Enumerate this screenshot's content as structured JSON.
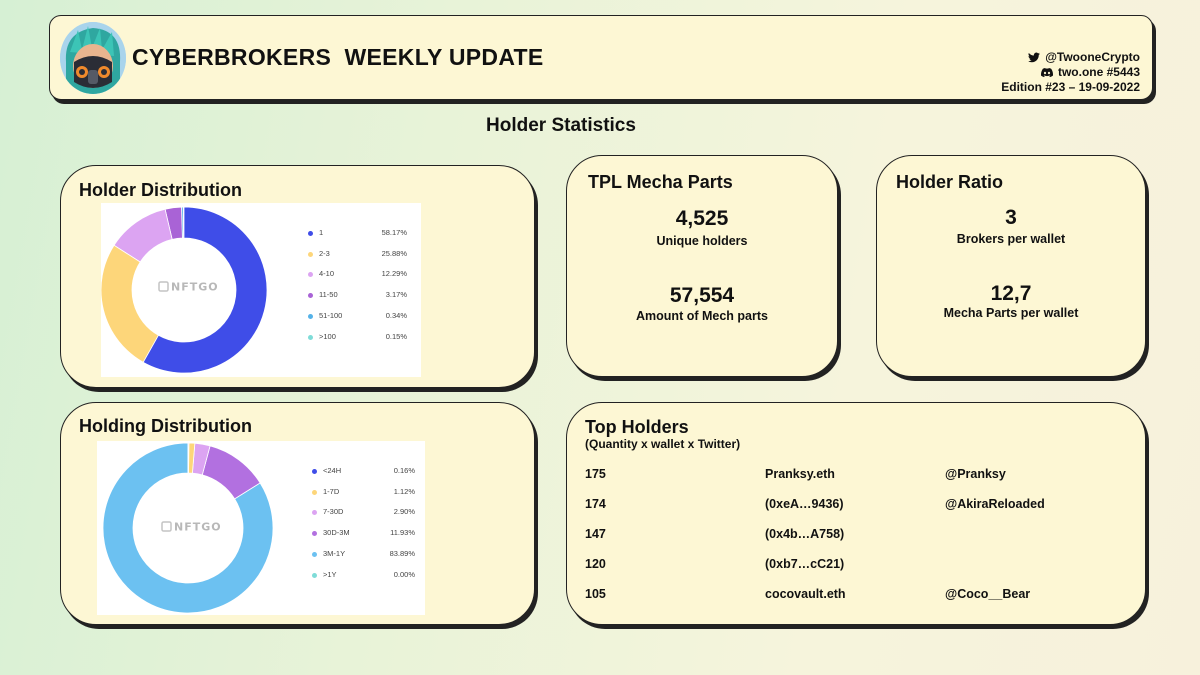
{
  "header": {
    "title": "CYBERBROKERS  WEEKLY UPDATE",
    "twitter_handle": "@TwooneCrypto",
    "discord_handle": "two.one #5443",
    "edition": "Edition #23 – 19-09-2022",
    "icons": {
      "twitter": "twitter-bird-icon",
      "discord": "discord-icon"
    }
  },
  "section_title": "Holder Statistics",
  "holder_distribution": {
    "title": "Holder Distribution",
    "watermark": "NFTGO"
  },
  "holding_distribution": {
    "title": "Holding Distribution",
    "watermark": "NFTGO"
  },
  "tpl_mecha_parts": {
    "title": "TPL Mecha Parts",
    "unique_holders_value": "4,525",
    "unique_holders_label": "Unique holders",
    "mech_parts_value": "57,554",
    "mech_parts_label": "Amount of Mech parts"
  },
  "holder_ratio": {
    "title": "Holder Ratio",
    "brokers_value": "3",
    "brokers_label": "Brokers per wallet",
    "mecha_value": "12,7",
    "mecha_label": "Mecha Parts per wallet"
  },
  "top_holders": {
    "title": "Top Holders",
    "subtitle": "(Quantity  x wallet x Twitter)",
    "rows": [
      {
        "qty": "175",
        "wallet": "Pranksy.eth",
        "twitter": "@Pranksy"
      },
      {
        "qty": "174",
        "wallet": "(0xeA…9436)",
        "twitter": "@AkiraReloaded"
      },
      {
        "qty": "147",
        "wallet": "(0x4b…A758)",
        "twitter": ""
      },
      {
        "qty": "120",
        "wallet": "(0xb7…cC21)",
        "twitter": ""
      },
      {
        "qty": "105",
        "wallet": "cocovault.eth",
        "twitter": "@Coco__Bear"
      }
    ]
  },
  "chart_data": [
    {
      "type": "pie",
      "title": "Holder Distribution",
      "categories": [
        "1",
        "2-3",
        "4-10",
        "11-50",
        "51-100",
        ">100"
      ],
      "values": [
        58.17,
        25.88,
        12.29,
        3.17,
        0.34,
        0.15
      ],
      "labels": [
        "58.17%",
        "25.88%",
        "12.29%",
        "3.17%",
        "0.34%",
        "0.15%"
      ],
      "colors": [
        "#3f4de8",
        "#fdd67a",
        "#dca4f2",
        "#a963d6",
        "#55b2e8",
        "#7fdcd8"
      ],
      "donut": true,
      "legend": "right"
    },
    {
      "type": "pie",
      "title": "Holding Distribution",
      "categories": [
        "<24H",
        "1-7D",
        "7-30D",
        "30D-3M",
        "3M-1Y",
        ">1Y"
      ],
      "values": [
        0.16,
        1.12,
        2.9,
        11.93,
        83.89,
        0.0
      ],
      "labels": [
        "0.16%",
        "1.12%",
        "2.90%",
        "11.93%",
        "83.89%",
        "0.00%"
      ],
      "colors": [
        "#3f4de8",
        "#fdd67a",
        "#dca4f2",
        "#b270e0",
        "#6cc1f1",
        "#7fdcd8"
      ],
      "donut": true,
      "legend": "right"
    }
  ]
}
